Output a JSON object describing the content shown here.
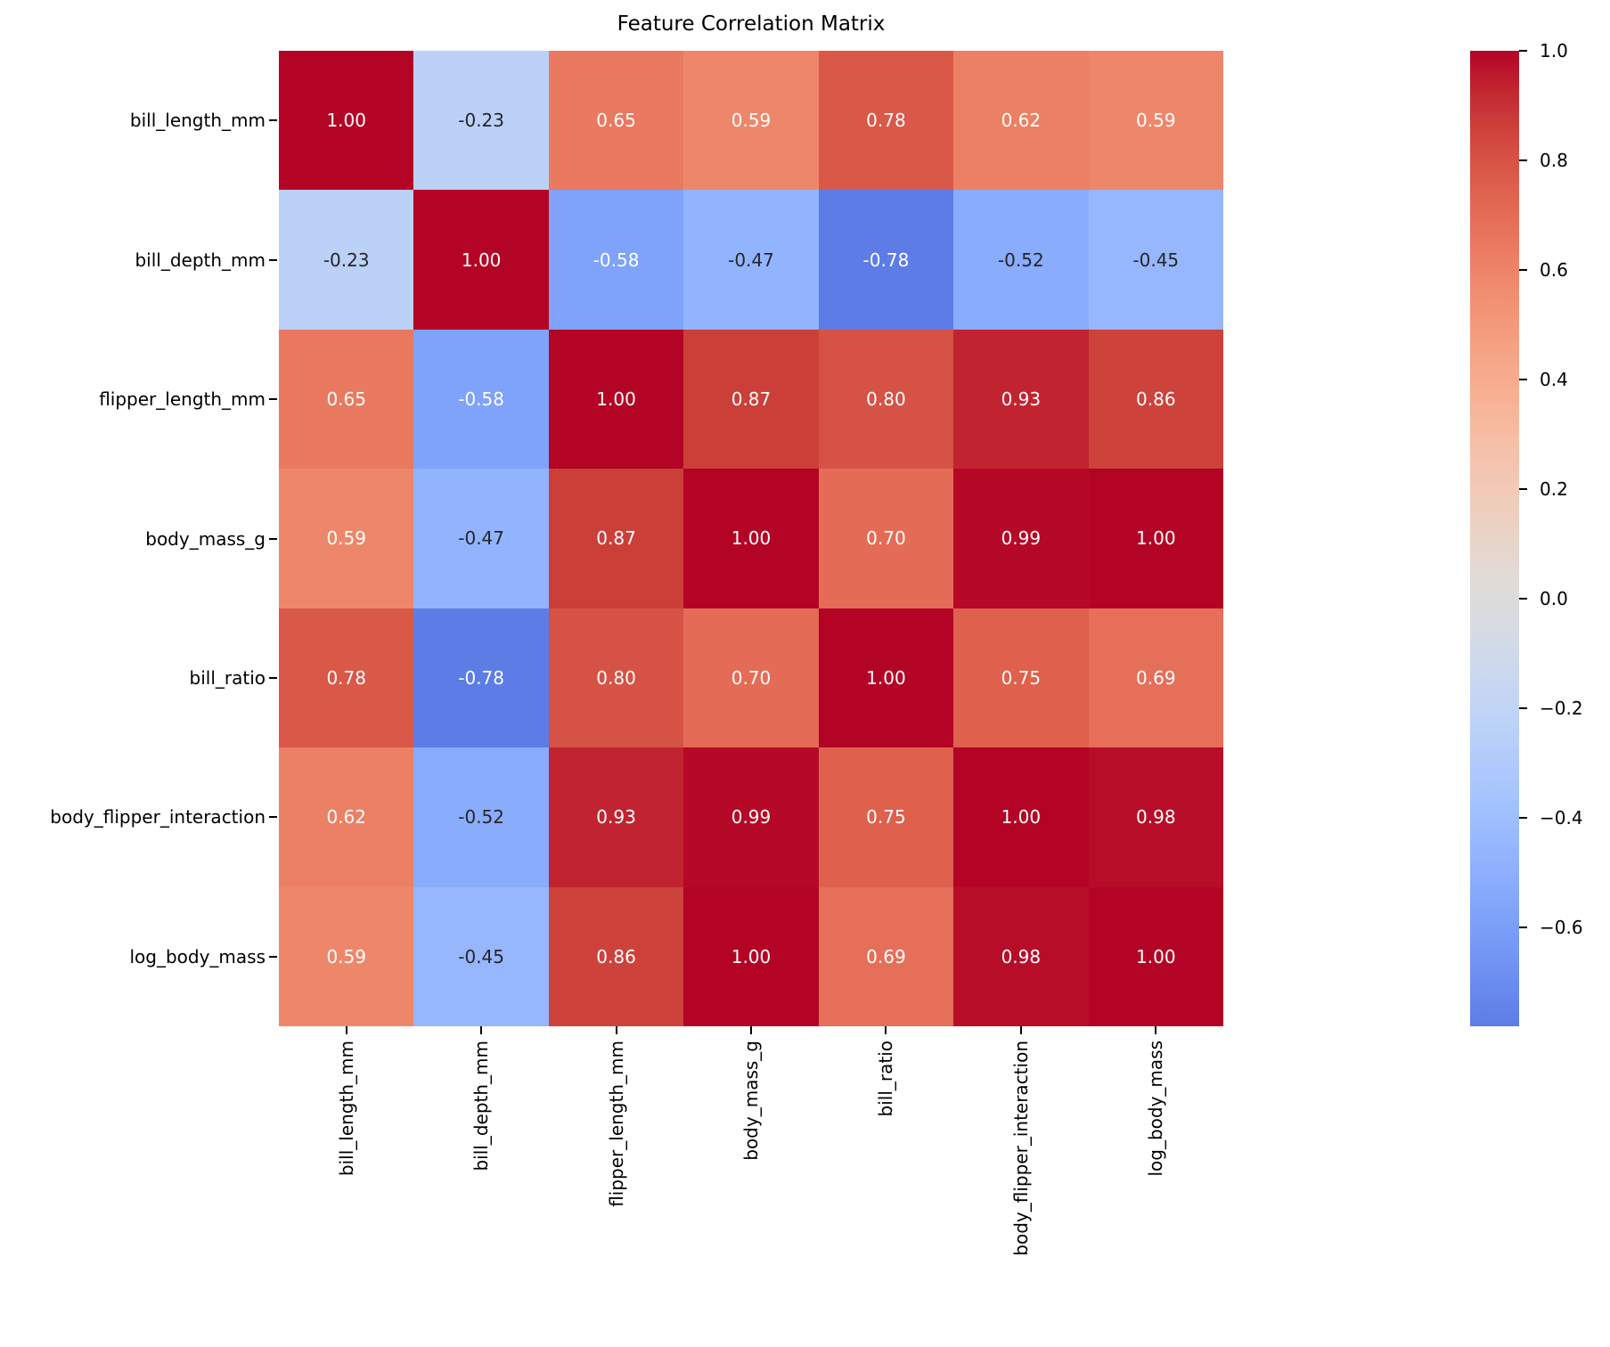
{
  "chart_data": {
    "type": "heatmap",
    "title": "Feature Correlation Matrix",
    "labels": [
      "bill_length_mm",
      "bill_depth_mm",
      "flipper_length_mm",
      "body_mass_g",
      "bill_ratio",
      "body_flipper_interaction",
      "log_body_mass"
    ],
    "matrix": [
      [
        1.0,
        -0.23,
        0.65,
        0.59,
        0.78,
        0.62,
        0.59
      ],
      [
        -0.23,
        1.0,
        -0.58,
        -0.47,
        -0.78,
        -0.52,
        -0.45
      ],
      [
        0.65,
        -0.58,
        1.0,
        0.87,
        0.8,
        0.93,
        0.86
      ],
      [
        0.59,
        -0.47,
        0.87,
        1.0,
        0.7,
        0.99,
        1.0
      ],
      [
        0.78,
        -0.78,
        0.8,
        0.7,
        1.0,
        0.75,
        0.69
      ],
      [
        0.62,
        -0.52,
        0.93,
        0.99,
        0.75,
        1.0,
        0.98
      ],
      [
        0.59,
        -0.45,
        0.86,
        1.0,
        0.69,
        0.98,
        1.0
      ]
    ],
    "value_decimals": 2,
    "grid": false,
    "legend_position": "colorbar-right",
    "colormap": {
      "name": "coolwarm",
      "norm_vmin": -1,
      "norm_vmax": 1,
      "stops": [
        [
          0.0,
          "#3b4cc0"
        ],
        [
          0.0625,
          "#4e68d8"
        ],
        [
          0.125,
          "#6282ea"
        ],
        [
          0.1875,
          "#779af7"
        ],
        [
          0.25,
          "#8db0fe"
        ],
        [
          0.3125,
          "#a3c2ff"
        ],
        [
          0.375,
          "#b8d0f9"
        ],
        [
          0.4375,
          "#ccd9ee"
        ],
        [
          0.5,
          "#dddddd"
        ],
        [
          0.5625,
          "#ecd3c5"
        ],
        [
          0.625,
          "#f5c4ad"
        ],
        [
          0.6875,
          "#f7b194"
        ],
        [
          0.75,
          "#f49a7b"
        ],
        [
          0.8125,
          "#ec7f63"
        ],
        [
          0.875,
          "#de604d"
        ],
        [
          0.9375,
          "#cb3e38"
        ],
        [
          1.0,
          "#b40426"
        ]
      ]
    },
    "colorbar": {
      "top_value": 1.0,
      "bottom_value": -0.78,
      "tick_values": [
        1.0,
        0.8,
        0.6,
        0.4,
        0.2,
        0.0,
        -0.2,
        -0.4,
        -0.6
      ],
      "tick_labels": [
        "1.0",
        "0.8",
        "0.6",
        "0.4",
        "0.2",
        "0.0",
        "−0.2",
        "−0.4",
        "−0.6"
      ]
    },
    "annotation_colors": {
      "light": "#ffffff",
      "dark": "#262626"
    },
    "axis_color": "#000000",
    "background": "#ffffff"
  }
}
